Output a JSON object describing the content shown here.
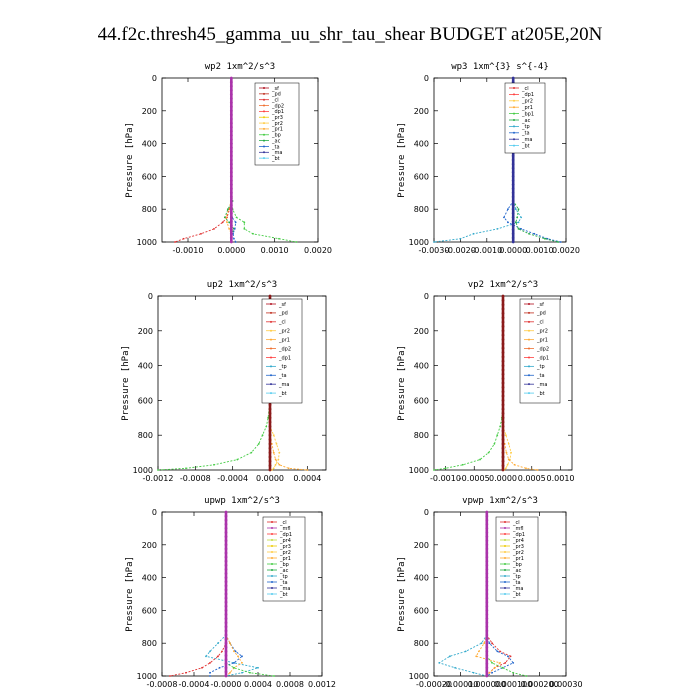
{
  "figure_title": "44.f2c.thresh45_gamma_uu_shr_tau_shear  BUDGET at205E,20N",
  "colors": {
    "sf": "#b00f1e",
    "pd": "#c03020",
    "cl": "#e03030",
    "dp1": "#ff4040",
    "dp2": "#f07030",
    "pr1": "#ffaa33",
    "pr2": "#ffcc44",
    "pr3": "#eecc00",
    "pr4": "#c0dd40",
    "bp": "#44cc44",
    "ac": "#22aa44",
    "tp": "#33aacc",
    "ta": "#2266cc",
    "ma": "#333399",
    "bt": "#55ccee",
    "mfl": "#aa33aa",
    "main": "#8b1a1a"
  },
  "chart_data": [
    {
      "type": "line",
      "title": "wp2   1xm^2/s^3",
      "ylabel": "Pressure [hPa]",
      "xlim": [
        -0.0016,
        0.002
      ],
      "xticks": [
        -0.001,
        0.0,
        0.001,
        0.002
      ],
      "xtick_labels": [
        "-0.0010",
        "0.0000",
        "0.0010",
        "0.0020"
      ],
      "ylim": [
        1000,
        0
      ],
      "yticks": [
        0,
        200,
        400,
        600,
        800,
        1000
      ],
      "legend": [
        "_sf",
        "_pd",
        "_cl",
        "_dp2",
        "_dp1",
        "_pr3",
        "_pr2",
        "_pr1",
        "_bp",
        "_ac",
        "_ta",
        "_ma",
        "_bt"
      ],
      "pressure": [
        0,
        200,
        400,
        600,
        700,
        750,
        800,
        850,
        880,
        920,
        950,
        980,
        1000
      ],
      "series": [
        {
          "name": "_cl",
          "color_key": "cl",
          "values": [
            0,
            0,
            0,
            0,
            0,
            0,
            -4e-05,
            -0.0001,
            -0.0002,
            -0.0004,
            -0.0007,
            -0.0011,
            -0.0013
          ]
        },
        {
          "name": "_pr1",
          "color_key": "pr1",
          "values": [
            0,
            0,
            0,
            0,
            0,
            0,
            -6e-05,
            -0.00012,
            -0.0001,
            -5e-05,
            0,
            0,
            0
          ]
        },
        {
          "name": "_bp",
          "color_key": "bp",
          "values": [
            0,
            0,
            0,
            0,
            0,
            0,
            3e-05,
            0.00012,
            0.0003,
            0.0003,
            0.0005,
            0.0011,
            0.0015
          ]
        },
        {
          "name": "_ac",
          "color_key": "ac",
          "values": [
            0,
            0,
            0,
            0,
            0,
            3e-05,
            -8e-05,
            -0.00015,
            -5e-05,
            6e-05,
            2e-05,
            0,
            0
          ]
        },
        {
          "name": "_ta",
          "color_key": "ta",
          "values": [
            0,
            0,
            0,
            0,
            0,
            0,
            0,
            2e-05,
            0.0001,
            8e-05,
            4e-05,
            6e-05,
            0.0001
          ]
        },
        {
          "name": "_pd",
          "color_key": "pd",
          "values": [
            0,
            0,
            0,
            0,
            0,
            0,
            0,
            0,
            0,
            0,
            0,
            0,
            0
          ]
        },
        {
          "name": "_sf",
          "color_key": "sf",
          "values": [
            0,
            0,
            0,
            0,
            0,
            0,
            0,
            0,
            0,
            0,
            0,
            0,
            0
          ]
        }
      ],
      "marker_series": {
        "name": "_mfl",
        "color_key": "mfl"
      }
    },
    {
      "type": "line",
      "title": "wp3   1xm^{3} s^{-4}",
      "ylabel": "Pressure [hPa]",
      "xlim": [
        -0.003,
        0.002
      ],
      "xticks": [
        -0.003,
        -0.002,
        -0.001,
        0.0,
        0.001,
        0.002
      ],
      "xtick_labels": [
        "-0.0030",
        "-0.0020",
        "-0.0010",
        "0.0000",
        "0.0010",
        "0.0020"
      ],
      "ylim": [
        1000,
        0
      ],
      "yticks": [
        0,
        200,
        400,
        600,
        800,
        1000
      ],
      "legend": [
        "_cl",
        "_dp1",
        "_pr2",
        "_pr1",
        "_bp1",
        "_ac",
        "_tp",
        "_ta",
        "_ma",
        "_bt"
      ],
      "pressure": [
        0,
        200,
        400,
        600,
        700,
        750,
        800,
        850,
        880,
        920,
        950,
        980,
        1000
      ],
      "series": [
        {
          "name": "_tp",
          "color_key": "tp",
          "values": [
            0,
            0,
            0,
            0,
            0,
            0,
            0.0001,
            0.0003,
            0.0002,
            -0.0006,
            -0.0015,
            -0.002,
            -0.003
          ]
        },
        {
          "name": "_ta",
          "color_key": "ta",
          "values": [
            0,
            0,
            0,
            0,
            0,
            0,
            -0.0002,
            -0.00035,
            -0.0002,
            0.0003,
            0.0008,
            0.0013,
            0.0018
          ]
        },
        {
          "name": "_ac",
          "color_key": "ac",
          "values": [
            0,
            0,
            0,
            0,
            0,
            0,
            0.0002,
            0.00015,
            0.0001,
            0.0002,
            0.0006,
            0.0012,
            0.0017
          ]
        },
        {
          "name": "_cl",
          "color_key": "cl",
          "values": [
            0,
            0,
            0,
            0,
            0,
            0,
            0,
            0,
            0,
            0,
            0,
            0,
            0
          ]
        }
      ],
      "marker_series": {
        "name": "_ma",
        "color_key": "ma"
      }
    },
    {
      "type": "line",
      "title": "up2   1xm^2/s^3",
      "ylabel": "Pressure [hPa]",
      "xlim": [
        -0.0012,
        0.0006
      ],
      "xticks": [
        -0.0012,
        -0.0008,
        -0.0004,
        0.0,
        0.0004
      ],
      "xtick_labels": [
        "-0.0012",
        "-0.0008",
        "-0.0004",
        "0.0000",
        "0.0004"
      ],
      "ylim": [
        1000,
        0
      ],
      "yticks": [
        0,
        200,
        400,
        600,
        800,
        1000
      ],
      "legend": [
        "_sf",
        "_pd",
        "_cl",
        "_pr2",
        "_pr1",
        "_dp2",
        "_dp1",
        "_tp",
        "_ta",
        "_ma",
        "_bt"
      ],
      "pressure": [
        0,
        200,
        400,
        600,
        700,
        750,
        800,
        850,
        900,
        940,
        970,
        990,
        1000
      ],
      "series": [
        {
          "name": "_dp1",
          "color_key": "bp",
          "values": [
            0,
            0,
            0,
            0,
            -2e-05,
            -4e-05,
            -8e-05,
            -0.00012,
            -0.0002,
            -0.00035,
            -0.0006,
            -0.0009,
            -0.0012
          ]
        },
        {
          "name": "_pr1",
          "color_key": "pr2",
          "values": [
            0,
            0,
            0,
            0,
            0,
            0,
            4e-05,
            7e-05,
            0.0001,
            9e-05,
            6e-05,
            4e-05,
            2e-05
          ]
        },
        {
          "name": "_pr2",
          "color_key": "pr1",
          "values": [
            0,
            0,
            0,
            0,
            0,
            0,
            0,
            2e-05,
            4e-05,
            6e-05,
            0.0001,
            0.0002,
            0.0004
          ]
        },
        {
          "name": "_sf",
          "color_key": "sf",
          "values": [
            0,
            0,
            0,
            0,
            0,
            0,
            0,
            0,
            0,
            0,
            0,
            0,
            0
          ]
        }
      ],
      "marker_series": {
        "name": "_sf",
        "color_key": "main"
      }
    },
    {
      "type": "line",
      "title": "vp2   1xm^2/s^3",
      "ylabel": "Pressure [hPa]",
      "xlim": [
        -0.0012,
        0.0012
      ],
      "xticks": [
        -0.001,
        -0.0005,
        0.0,
        0.0005,
        0.001
      ],
      "xtick_labels": [
        "-0.0010",
        "-0.0005",
        "0.0000",
        "0.0005",
        "0.0010"
      ],
      "ylim": [
        1000,
        0
      ],
      "yticks": [
        0,
        200,
        400,
        600,
        800,
        1000
      ],
      "legend": [
        "_sf",
        "_pd",
        "_cl",
        "_pr2",
        "_pr1",
        "_dp2",
        "_dp1",
        "_tp",
        "_ta",
        "_ma",
        "_bt"
      ],
      "pressure": [
        0,
        200,
        400,
        600,
        700,
        750,
        800,
        850,
        900,
        940,
        970,
        990,
        1000
      ],
      "series": [
        {
          "name": "_dp1",
          "color_key": "bp",
          "values": [
            0,
            0,
            0,
            0,
            -2e-05,
            -5e-05,
            -0.0001,
            -0.00015,
            -0.00025,
            -0.0004,
            -0.0007,
            -0.001,
            -0.0012
          ]
        },
        {
          "name": "_pr1",
          "color_key": "pr2",
          "values": [
            0,
            0,
            0,
            0,
            0,
            0,
            5e-05,
            0.0001,
            0.00014,
            0.00012,
            8e-05,
            5e-05,
            2e-05
          ]
        },
        {
          "name": "_pr2",
          "color_key": "pr1",
          "values": [
            0,
            0,
            0,
            0,
            0,
            0,
            0,
            3e-05,
            6e-05,
            0.0001,
            0.0002,
            0.0004,
            0.0006
          ]
        },
        {
          "name": "_sf",
          "color_key": "sf",
          "values": [
            0,
            0,
            0,
            0,
            0,
            0,
            0,
            0,
            0,
            0,
            0,
            0,
            0
          ]
        }
      ],
      "marker_series": {
        "name": "_sf",
        "color_key": "main"
      }
    },
    {
      "type": "line",
      "title": "upwp   1xm^2/s^3",
      "ylabel": "Pressure [hPa]",
      "xlim": [
        -0.0008,
        0.0012
      ],
      "xticks": [
        -0.0008,
        -0.0004,
        0.0,
        0.0004,
        0.0008,
        0.0012
      ],
      "xtick_labels": [
        "-0.0008",
        "-0.0004",
        "-0.0000",
        "0.0004",
        "0.0008",
        "0.0012"
      ],
      "ylim": [
        1000,
        0
      ],
      "yticks": [
        0,
        200,
        400,
        600,
        800,
        1000
      ],
      "legend": [
        "_cl",
        "_mfl",
        "_dp1",
        "_pr4",
        "_pr3",
        "_pr2",
        "_pr1",
        "_bp",
        "_ac",
        "_tp",
        "_ta",
        "_ma",
        "_bt"
      ],
      "pressure": [
        0,
        200,
        400,
        600,
        700,
        750,
        800,
        850,
        880,
        920,
        950,
        980,
        1000
      ],
      "series": [
        {
          "name": "_tp",
          "color_key": "tp",
          "values": [
            0,
            0,
            0,
            0,
            0,
            0,
            -0.0001,
            -0.0002,
            -0.00025,
            0.0001,
            0.0004,
            0.0002,
            0
          ]
        },
        {
          "name": "_ta",
          "color_key": "ta",
          "values": [
            0,
            0,
            0,
            0,
            0,
            0,
            5e-05,
            0.00012,
            0.0002,
            0.0001,
            -8e-05,
            -0.0002,
            -0.0002
          ]
        },
        {
          "name": "_pr1",
          "color_key": "pr1",
          "values": [
            0,
            0,
            0,
            0,
            0,
            0,
            5e-05,
            0.0001,
            0.00015,
            0.0002,
            0.0001,
            5e-05,
            0
          ]
        },
        {
          "name": "_dp1",
          "color_key": "cl",
          "values": [
            0,
            0,
            0,
            0,
            0,
            0,
            0,
            -5e-05,
            -0.0001,
            -0.0002,
            -0.0003,
            -0.0005,
            -0.0007
          ]
        },
        {
          "name": "_bp",
          "color_key": "bp",
          "values": [
            0,
            0,
            0,
            0,
            0,
            0,
            0,
            0,
            0,
            0,
            0.0001,
            0.0003,
            0.0006
          ]
        }
      ],
      "marker_series": {
        "name": "_mfl",
        "color_key": "mfl"
      }
    },
    {
      "type": "line",
      "title": "vpwp   1xm^2/s^3",
      "ylabel": "Pressure [hPa]",
      "xlim": [
        -0.0002,
        0.0003
      ],
      "xticks": [
        -0.0002,
        -0.0001,
        0.0,
        0.0001,
        0.0002,
        0.0003
      ],
      "xtick_labels": [
        "-0.00020",
        "-0.00010",
        "0.000000",
        "0.000100",
        "0.000200",
        "0.00030"
      ],
      "ylim": [
        1000,
        0
      ],
      "yticks": [
        0,
        200,
        400,
        600,
        800,
        1000
      ],
      "legend": [
        "_cl",
        "_mfl",
        "_dp1",
        "_pr4",
        "_pr3",
        "_pr2",
        "_pr1",
        "_bp",
        "_ac",
        "_tp",
        "_ta",
        "_ma",
        "_bt"
      ],
      "pressure": [
        0,
        200,
        400,
        600,
        700,
        750,
        800,
        850,
        880,
        920,
        950,
        980,
        1000
      ],
      "series": [
        {
          "name": "_tp",
          "color_key": "tp",
          "values": [
            0,
            0,
            0,
            0,
            0,
            0,
            -2e-05,
            -8e-05,
            -0.00014,
            -0.00018,
            -0.00012,
            -5e-05,
            0
          ]
        },
        {
          "name": "_ta",
          "color_key": "ta",
          "values": [
            0,
            0,
            0,
            0,
            0,
            0,
            1e-05,
            4e-05,
            8e-05,
            0.0001,
            6e-05,
            2e-05,
            0
          ]
        },
        {
          "name": "_dp1",
          "color_key": "cl",
          "values": [
            0,
            0,
            0,
            0,
            0,
            0,
            2e-05,
            5e-05,
            9e-05,
            7e-05,
            3e-05,
            1e-05,
            0
          ]
        },
        {
          "name": "_pr1",
          "color_key": "pr1",
          "values": [
            0,
            0,
            0,
            0,
            0,
            0,
            -1e-05,
            -3e-05,
            -4e-05,
            5e-05,
            3e-05,
            1e-05,
            0
          ]
        },
        {
          "name": "_bp",
          "color_key": "bp",
          "values": [
            0,
            0,
            0,
            0,
            0,
            0,
            0,
            0,
            0,
            2e-05,
            6e-05,
            0.0001,
            0.00015
          ]
        }
      ],
      "marker_series": {
        "name": "_mfl",
        "color_key": "mfl"
      }
    }
  ]
}
